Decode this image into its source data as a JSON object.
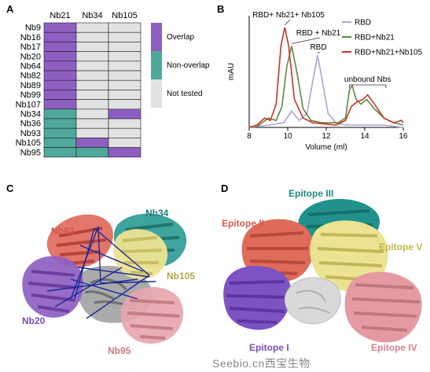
{
  "panels": {
    "A": "A",
    "B": "B",
    "C": "C",
    "D": "D"
  },
  "panel_a": {
    "columns": [
      "Nb21",
      "Nb34",
      "Nb105"
    ],
    "rows": [
      "Nb9",
      "Nb16",
      "Nb17",
      "Nb20",
      "Nb64",
      "Nb82",
      "Nb89",
      "Nb99",
      "Nb107",
      "Nb34",
      "Nb36",
      "Nb93",
      "Nb105",
      "Nb95"
    ],
    "cells": [
      [
        "overlap",
        "not_tested",
        "not_tested"
      ],
      [
        "overlap",
        "not_tested",
        "not_tested"
      ],
      [
        "overlap",
        "not_tested",
        "not_tested"
      ],
      [
        "overlap",
        "not_tested",
        "not_tested"
      ],
      [
        "overlap",
        "not_tested",
        "not_tested"
      ],
      [
        "overlap",
        "not_tested",
        "not_tested"
      ],
      [
        "overlap",
        "not_tested",
        "not_tested"
      ],
      [
        "overlap",
        "not_tested",
        "not_tested"
      ],
      [
        "overlap",
        "not_tested",
        "not_tested"
      ],
      [
        "non_overlap",
        "not_tested",
        "overlap"
      ],
      [
        "non_overlap",
        "not_tested",
        "not_tested"
      ],
      [
        "non_overlap",
        "not_tested",
        "not_tested"
      ],
      [
        "non_overlap",
        "overlap",
        "not_tested"
      ],
      [
        "non_overlap",
        "non_overlap",
        "overlap"
      ]
    ],
    "legend": {
      "overlap": "Overlap",
      "non_overlap": "Non-overlap",
      "not_tested": "Not tested"
    },
    "colors": {
      "overlap": "#8e5fc2",
      "non_overlap": "#4fa89a",
      "not_tested": "#e2e2e2"
    }
  },
  "chart_data": {
    "type": "line",
    "ylabel": "mAU",
    "xlabel": "Volume (ml)",
    "xlim": [
      8,
      16
    ],
    "xticks": [
      8,
      10,
      12,
      14,
      16
    ],
    "series": [
      {
        "name": "RBD",
        "color": "#a9a6d6",
        "points": [
          [
            8,
            0
          ],
          [
            9,
            1
          ],
          [
            9.8,
            2
          ],
          [
            10.2,
            7
          ],
          [
            10.6,
            3
          ],
          [
            11.0,
            6
          ],
          [
            11.3,
            20
          ],
          [
            11.55,
            31
          ],
          [
            11.8,
            20
          ],
          [
            12.1,
            6
          ],
          [
            12.5,
            2
          ],
          [
            13.0,
            1
          ],
          [
            13.5,
            1
          ],
          [
            14,
            1
          ],
          [
            15,
            1
          ],
          [
            16,
            0
          ]
        ]
      },
      {
        "name": "RBD+Nb21",
        "color": "#5b8a3c",
        "points": [
          [
            8,
            0
          ],
          [
            8.5,
            1
          ],
          [
            9.0,
            4
          ],
          [
            9.4,
            3
          ],
          [
            9.7,
            9
          ],
          [
            9.95,
            26
          ],
          [
            10.2,
            35
          ],
          [
            10.45,
            25
          ],
          [
            10.8,
            8
          ],
          [
            11.2,
            3
          ],
          [
            11.8,
            2
          ],
          [
            12.6,
            2
          ],
          [
            13.0,
            4
          ],
          [
            13.2,
            16
          ],
          [
            13.35,
            18
          ],
          [
            13.55,
            12
          ],
          [
            13.8,
            10
          ],
          [
            14.1,
            12
          ],
          [
            14.5,
            8
          ],
          [
            15,
            4
          ],
          [
            15.5,
            2
          ],
          [
            16,
            1
          ]
        ]
      },
      {
        "name": "RBD+Nb21+Nb105",
        "color": "#c8332d",
        "points": [
          [
            8,
            0
          ],
          [
            8.4,
            1
          ],
          [
            8.8,
            4
          ],
          [
            9.1,
            3
          ],
          [
            9.4,
            10
          ],
          [
            9.65,
            35
          ],
          [
            9.85,
            43
          ],
          [
            10.05,
            35
          ],
          [
            10.35,
            12
          ],
          [
            10.8,
            4
          ],
          [
            11.3,
            2
          ],
          [
            12.5,
            1
          ],
          [
            13.0,
            3
          ],
          [
            13.3,
            9
          ],
          [
            13.6,
            11
          ],
          [
            13.9,
            12
          ],
          [
            14.15,
            14
          ],
          [
            14.5,
            10
          ],
          [
            15.0,
            4
          ],
          [
            15.5,
            2
          ],
          [
            15.9,
            3
          ],
          [
            16,
            2
          ]
        ]
      }
    ],
    "annotations": {
      "rbd_nb21_nb105": "RBD+ Nb21+ Nb105",
      "rbd_nb21": "RBD + Nb21",
      "rbd": "RBD",
      "unbound": "unbound Nbs"
    },
    "legend_position": "top-right",
    "ylim": [
      0,
      48
    ]
  },
  "panel_c": {
    "labels": {
      "nb93": "Nb93",
      "nb34": "Nb34",
      "nb105": "Nb105",
      "nb20": "Nb20",
      "nb95": "Nb95"
    },
    "colors": {
      "nb93": "#e0665a",
      "nb34": "#2a9a92",
      "nb105": "#e6dc8a",
      "nb20": "#8e5fc2",
      "nb95": "#e8a6ac",
      "rbd": "#999999",
      "lines": "#1a2a9a"
    }
  },
  "panel_d": {
    "labels": {
      "epitope_i": "Epitope I",
      "epitope_ii": "Epitope II",
      "epitope_iii": "Epitope III",
      "epitope_iv": "Epitope IV",
      "epitope_v": "Epitope V"
    }
  },
  "watermark": "Seebio.cn西宝生物"
}
